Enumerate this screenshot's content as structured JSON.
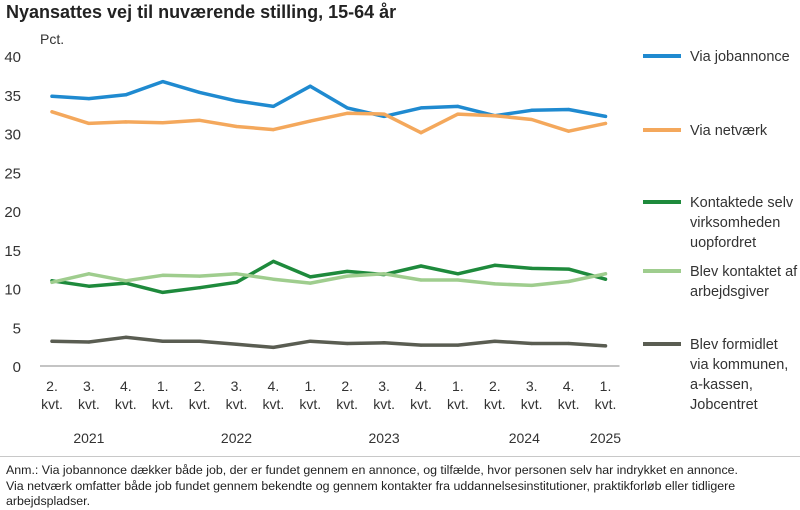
{
  "title": "Nyansattes vej til nuværende stilling, 15-64 år",
  "chart_data": {
    "type": "line",
    "ylabel": "Pct.",
    "ylim": [
      0,
      40
    ],
    "yticks": [
      0,
      5,
      10,
      15,
      20,
      25,
      30,
      35,
      40
    ],
    "grid": false,
    "legend": "right",
    "categories": [
      [
        "2.",
        "kvt."
      ],
      [
        "3.",
        "kvt."
      ],
      [
        "4.",
        "kvt."
      ],
      [
        "1.",
        "kvt."
      ],
      [
        "2.",
        "kvt."
      ],
      [
        "3.",
        "kvt."
      ],
      [
        "4.",
        "kvt."
      ],
      [
        "1.",
        "kvt."
      ],
      [
        "2.",
        "kvt."
      ],
      [
        "3.",
        "kvt."
      ],
      [
        "4.",
        "kvt."
      ],
      [
        "1.",
        "kvt."
      ],
      [
        "2.",
        "kvt."
      ],
      [
        "3.",
        "kvt."
      ],
      [
        "4.",
        "kvt."
      ],
      [
        "1.",
        "kvt."
      ]
    ],
    "years": [
      {
        "label": "2021",
        "at": 1
      },
      {
        "label": "2022",
        "at": 5
      },
      {
        "label": "2023",
        "at": 9
      },
      {
        "label": "2024",
        "at": 12.8
      },
      {
        "label": "2025",
        "at": 15
      }
    ],
    "series": [
      {
        "name": "Via jobannonce",
        "legend_lines": [
          "Via jobannonce"
        ],
        "color": "#1f8ad0",
        "values": [
          34.8,
          34.5,
          35.0,
          36.7,
          35.3,
          34.2,
          33.5,
          36.1,
          33.3,
          32.2,
          33.3,
          33.5,
          32.3,
          33.0,
          33.1,
          32.2
        ]
      },
      {
        "name": "Via netværk",
        "legend_lines": [
          "Via netværk"
        ],
        "color": "#f4a85c",
        "values": [
          32.8,
          31.3,
          31.5,
          31.4,
          31.7,
          30.9,
          30.5,
          31.6,
          32.6,
          32.5,
          30.1,
          32.5,
          32.3,
          31.8,
          30.3,
          31.3
        ]
      },
      {
        "name": "Kontaktede selv virksomheden uopfordret",
        "legend_lines": [
          "Kontaktede selv",
          "virksomheden",
          "uopfordret"
        ],
        "color": "#1e8a3c",
        "values": [
          11.0,
          10.3,
          10.7,
          9.5,
          10.1,
          10.8,
          13.5,
          11.5,
          12.2,
          11.8,
          12.9,
          11.9,
          13.0,
          12.6,
          12.5,
          11.2
        ]
      },
      {
        "name": "Blev kontaktet af arbejdsgiver",
        "legend_lines": [
          "Blev kontaktet af",
          "arbejdsgiver"
        ],
        "color": "#9fcd8e",
        "values": [
          10.8,
          11.9,
          11.0,
          11.7,
          11.6,
          11.9,
          11.2,
          10.7,
          11.6,
          11.9,
          11.1,
          11.1,
          10.6,
          10.4,
          10.9,
          11.9
        ]
      },
      {
        "name": "Blev formidlet via kommunen, a-kassen, Jobcentret",
        "legend_lines": [
          "Blev formidlet",
          "via kommunen,",
          "a-kassen,",
          "Jobcentret"
        ],
        "color": "#5a5d52",
        "values": [
          3.2,
          3.1,
          3.7,
          3.2,
          3.2,
          2.8,
          2.4,
          3.2,
          2.9,
          3.0,
          2.7,
          2.7,
          3.2,
          2.9,
          2.9,
          2.6
        ]
      }
    ]
  },
  "note_lines": [
    "Anm.: Via jobannonce dækker både job, der er fundet gennem en annonce, og tilfælde, hvor personen selv har indrykket en annonce.",
    "Via netværk omfatter både job fundet gennem bekendte og gennem kontakter fra uddannelsesinstitutioner, praktikforløb eller tidligere",
    "arbejdspladser."
  ]
}
